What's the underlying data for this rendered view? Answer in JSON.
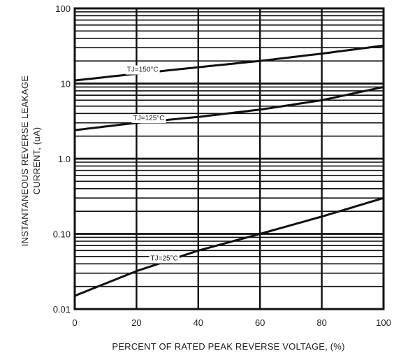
{
  "chart_data": {
    "type": "line",
    "title": "",
    "xlabel": "PERCENT OF RATED PEAK REVERSE VOLTAGE, (%)",
    "ylabel_lines": [
      "INSTANTANEOUS REVERSE LEAKAGE",
      "CURRENT,  (uA)"
    ],
    "xlim": [
      0,
      100
    ],
    "ylim": [
      0.01,
      100
    ],
    "yscale": "log",
    "grid": true,
    "x_ticks": [
      0,
      20,
      40,
      60,
      80,
      100
    ],
    "x_tick_labels": [
      "0",
      "20",
      "40",
      "60",
      "80",
      "100"
    ],
    "y_ticks": [
      0.01,
      0.1,
      1,
      10,
      100
    ],
    "y_tick_labels": [
      "0.01",
      "0.10",
      "1.0",
      "10",
      "100"
    ],
    "series": [
      {
        "name": "TJ=150°C",
        "x": [
          0,
          20,
          40,
          60,
          80,
          100
        ],
        "values": [
          11,
          13.5,
          16.5,
          20,
          25,
          32
        ]
      },
      {
        "name": "TJ=125°C",
        "x": [
          0,
          20,
          40,
          60,
          80,
          100
        ],
        "values": [
          2.4,
          3.0,
          3.6,
          4.5,
          6.0,
          9.0
        ]
      },
      {
        "name": "TJ=25°C",
        "x": [
          0,
          20,
          40,
          60,
          80,
          100
        ],
        "values": [
          0.015,
          0.032,
          0.06,
          0.1,
          0.17,
          0.3
        ]
      }
    ]
  }
}
